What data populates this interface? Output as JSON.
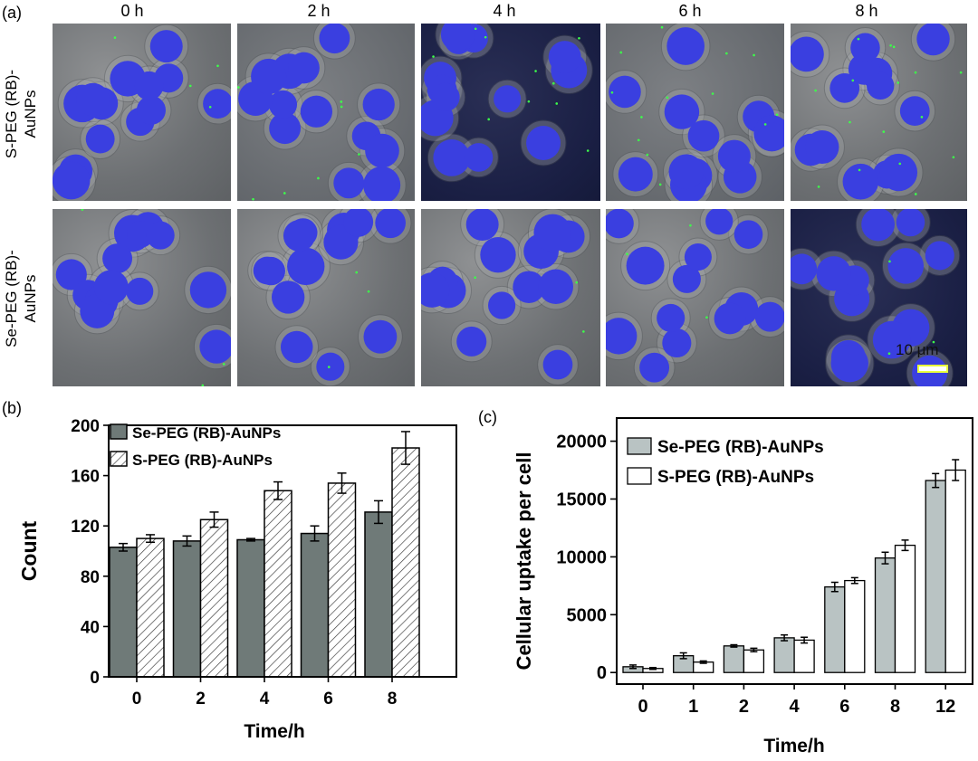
{
  "panels": {
    "a": "(a)",
    "b": "(b)",
    "c": "(c)"
  },
  "time_labels": [
    "0 h",
    "2 h",
    "4 h",
    "6 h",
    "8 h"
  ],
  "row_labels": [
    [
      "S-PEG (RB)-",
      "AuNPs"
    ],
    [
      "Se-PEG (RB)-",
      "AuNPs"
    ]
  ],
  "scale_bar": "10 μm",
  "colors": {
    "nucleus": "#3a3fe0",
    "particle": "#3cff4a",
    "se_bar": "#6f7a78",
    "s_bar_hatch": "#333333",
    "c_se_bar": "#b9c3c3"
  },
  "chart_data": [
    {
      "type": "bar",
      "categories": [
        "0",
        "2",
        "4",
        "6",
        "8"
      ],
      "series": [
        {
          "name": "Se-PEG (RB)-AuNPs",
          "values": [
            103,
            108,
            109,
            114,
            131
          ],
          "errors": [
            3,
            4,
            1,
            6,
            9
          ]
        },
        {
          "name": "S-PEG (RB)-AuNPs",
          "values": [
            110,
            125,
            148,
            154,
            182
          ],
          "errors": [
            3,
            6,
            7,
            8,
            13
          ]
        }
      ],
      "title": "",
      "xlabel": "Time/h",
      "ylabel": "Count",
      "ylim": [
        0,
        200
      ],
      "yticks": [
        "0",
        "40",
        "80",
        "120",
        "160",
        "200"
      ],
      "legend": "top-left"
    },
    {
      "type": "bar",
      "categories": [
        "0",
        "1",
        "2",
        "4",
        "6",
        "8",
        "12"
      ],
      "series": [
        {
          "name": "Se-PEG (RB)-AuNPs",
          "values": [
            500,
            1450,
            2300,
            3000,
            7400,
            9900,
            16600
          ],
          "errors": [
            150,
            250,
            100,
            250,
            400,
            500,
            600
          ]
        },
        {
          "name": "S-PEG (RB)-AuNPs",
          "values": [
            350,
            900,
            1950,
            2800,
            7950,
            11000,
            17500
          ],
          "errors": [
            80,
            100,
            150,
            250,
            250,
            450,
            900
          ]
        }
      ],
      "title": "",
      "xlabel": "Time/h",
      "ylabel": "Cellular uptake per cell",
      "ylim": [
        -1000,
        22000
      ],
      "yticks": [
        "0",
        "5000",
        "10000",
        "15000",
        "20000"
      ],
      "legend": "top-left"
    }
  ]
}
